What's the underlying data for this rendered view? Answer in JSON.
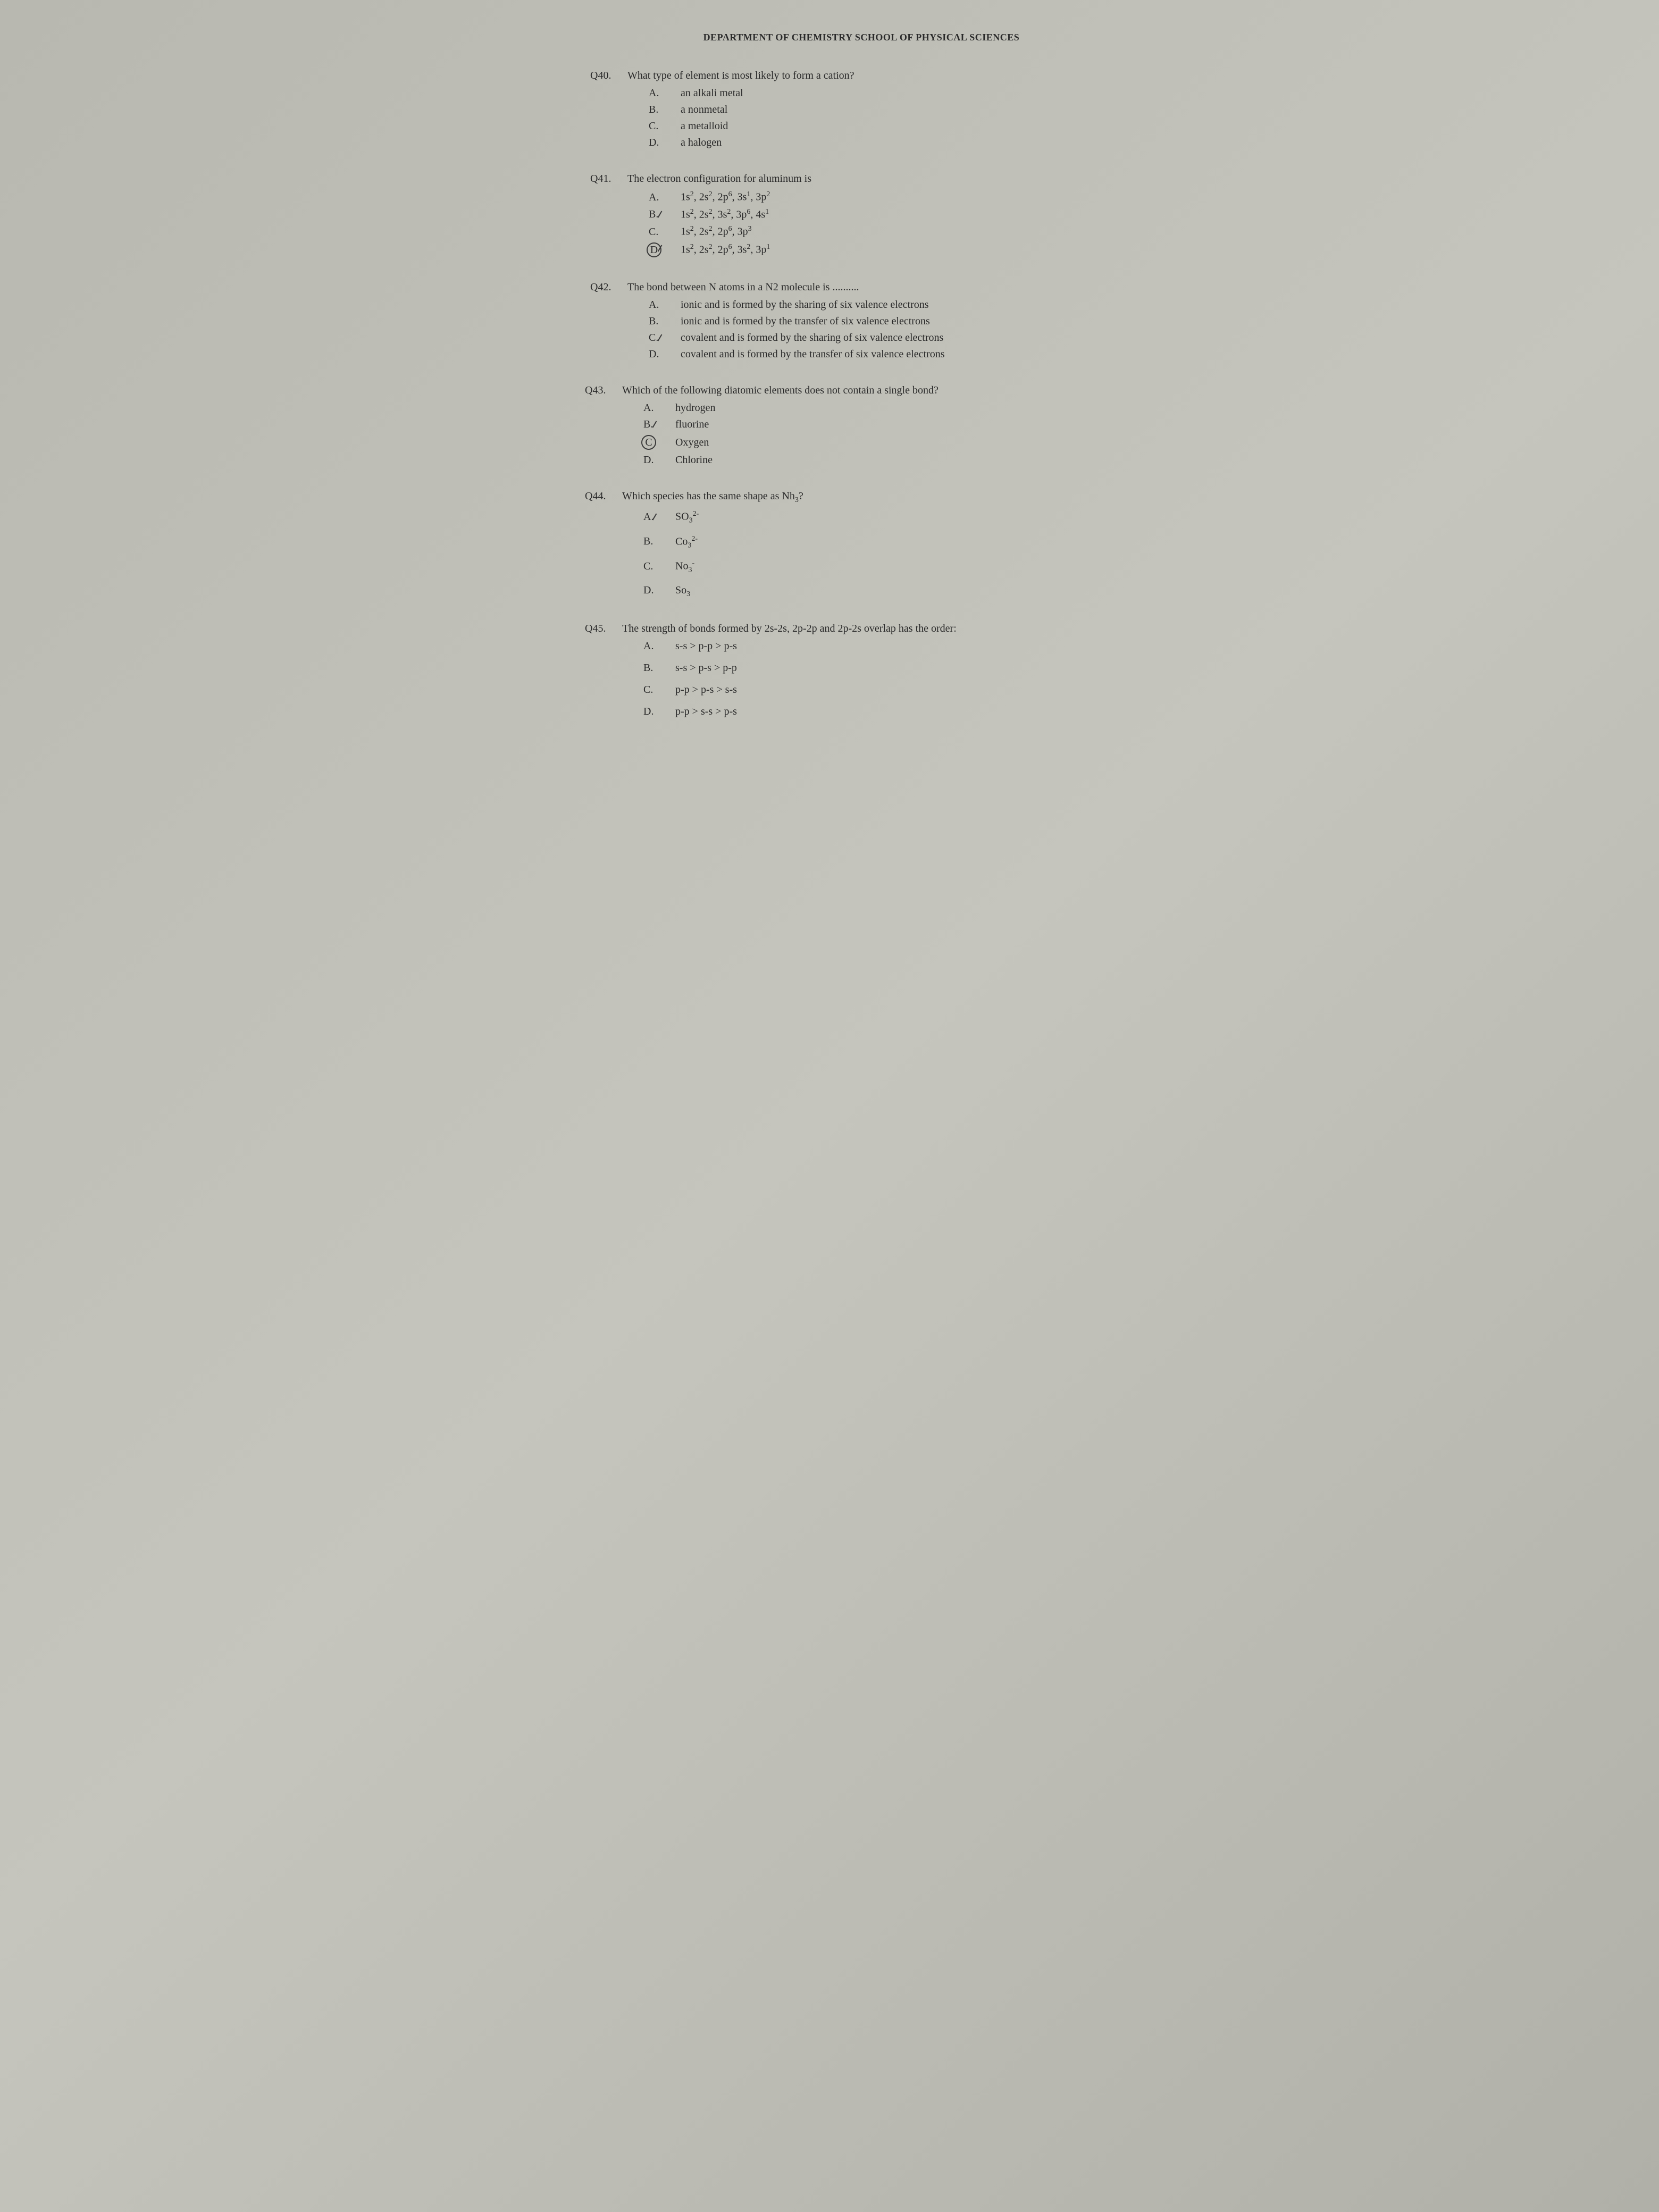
{
  "header": "DEPARTMENT OF CHEMISTRY SCHOOL OF PHYSICAL SCIENCES",
  "questions": [
    {
      "num": "Q40.",
      "text": "What type of element is most likely to form a cation?",
      "options": [
        {
          "letter": "A.",
          "text": "an alkali metal",
          "marked": false
        },
        {
          "letter": "B.",
          "text": "a nonmetal",
          "marked": false
        },
        {
          "letter": "C.",
          "text": "a metalloid",
          "marked": false
        },
        {
          "letter": "D.",
          "text": "a halogen",
          "marked": false
        }
      ]
    },
    {
      "num": "Q41.",
      "text": "The electron configuration for aluminum is",
      "options": [
        {
          "letter": "A.",
          "html": "1s<sup>2</sup>, 2s<sup>2</sup>, 2p<sup>6</sup>, 3s<sup>1</sup>, 3p<sup>2</sup>",
          "marked": false
        },
        {
          "letter": "B.",
          "html": "1s<sup>2</sup>, 2s<sup>2</sup>, 3s<sup>2</sup>, 3p<sup>6</sup>, 4s<sup>1</sup>",
          "marked": "slash"
        },
        {
          "letter": "C.",
          "html": "1s<sup>2</sup>, 2s<sup>2</sup>, 2p<sup>6</sup>, 3p<sup>3</sup>",
          "marked": false
        },
        {
          "letter": "D.",
          "html": "1s<sup>2</sup>, 2s<sup>2</sup>, 2p<sup>6</sup>, 3s<sup>2</sup>, 3p<sup>1</sup>",
          "marked": "circled-slash"
        }
      ]
    },
    {
      "num": "Q42.",
      "text_html": "The bond between N atoms in a N2 molecule is",
      "dots": true,
      "options": [
        {
          "letter": "A.",
          "text": "ionic and is formed by the sharing of six valence electrons",
          "marked": false
        },
        {
          "letter": "B.",
          "text": "ionic and is formed by the transfer of six valence electrons",
          "marked": false
        },
        {
          "letter": "C.",
          "text": "covalent and is formed by the sharing of six valence electrons",
          "marked": "slash"
        },
        {
          "letter": "D.",
          "text": "covalent and is formed by the transfer of six valence electrons",
          "marked": false
        }
      ]
    },
    {
      "num": "Q43.",
      "text": "Which of the following diatomic elements does not contain a single bond?",
      "options": [
        {
          "letter": "A.",
          "text": "hydrogen",
          "marked": false
        },
        {
          "letter": "B.",
          "text": "fluorine",
          "marked": "slash"
        },
        {
          "letter": "C.",
          "text": "Oxygen",
          "marked": "circled"
        },
        {
          "letter": "D.",
          "text": "Chlorine",
          "marked": false
        }
      ]
    },
    {
      "num": "Q44.",
      "text_html": "Which species has the same shape as Nh<sub>3</sub>?",
      "options": [
        {
          "letter": "A.",
          "html": "SO<sub>3</sub><sup>2-</sup>",
          "marked": "slash"
        },
        {
          "letter": "B.",
          "html": "Co<sub>3</sub><sup>2-</sup>",
          "marked": false
        },
        {
          "letter": "C.",
          "html": "No<sub>3</sub><sup>-</sup>",
          "marked": false
        },
        {
          "letter": "D.",
          "html": "So<sub>3</sub>",
          "marked": false
        }
      ]
    },
    {
      "num": "Q45.",
      "text": "The strength of bonds formed by 2s-2s, 2p-2p and 2p-2s overlap has the order:",
      "options": [
        {
          "letter": "A.",
          "text": "s-s > p-p > p-s",
          "marked": false
        },
        {
          "letter": "B.",
          "text": "s-s > p-s > p-p",
          "marked": false
        },
        {
          "letter": "C.",
          "text": "p-p > p-s > s-s",
          "marked": false
        },
        {
          "letter": "D.",
          "text": "p-p > s-s > p-s",
          "marked": false
        }
      ]
    }
  ]
}
